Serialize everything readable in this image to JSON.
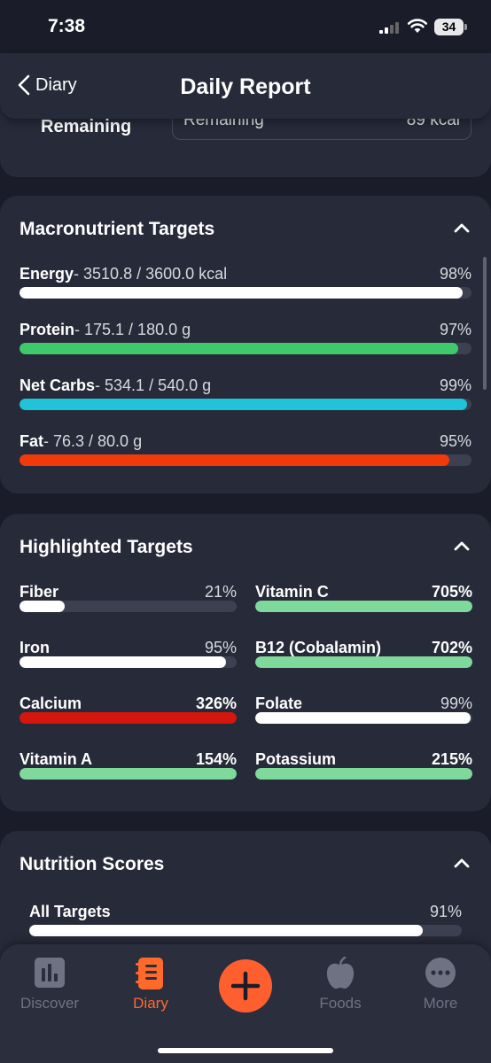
{
  "status_bar": {
    "time": "7:38",
    "battery": "34"
  },
  "header": {
    "back_label": "Diary",
    "title": "Daily Report"
  },
  "remaining_card": {
    "label": "Remaining",
    "box_label": "Remaining",
    "box_value": "89 kcal"
  },
  "macro_card": {
    "title": "Macronutrient Targets",
    "rows": [
      {
        "name": "Energy",
        "detail": "- 3510.8 / 3600.0 kcal",
        "percent_text": "98%",
        "progress": 0.98,
        "color": "#ffffff"
      },
      {
        "name": "Protein",
        "detail": "- 175.1 / 180.0 g",
        "percent_text": "97%",
        "progress": 0.97,
        "color": "#3ec96b"
      },
      {
        "name": "Net Carbs",
        "detail": "- 534.1 / 540.0 g",
        "percent_text": "99%",
        "progress": 0.99,
        "color": "#1fc4d8"
      },
      {
        "name": "Fat",
        "detail": "- 76.3 / 80.0 g",
        "percent_text": "95%",
        "progress": 0.95,
        "color": "#f03a0c"
      }
    ]
  },
  "highlight_card": {
    "title": "Highlighted Targets",
    "items": [
      {
        "name": "Fiber",
        "percent_text": "21%",
        "progress": 0.21,
        "color": "#ffffff",
        "bold": false
      },
      {
        "name": "Vitamin C",
        "percent_text": "705%",
        "progress": 1.0,
        "color": "#7ed99a",
        "bold": true
      },
      {
        "name": "Iron",
        "percent_text": "95%",
        "progress": 0.95,
        "color": "#ffffff",
        "bold": false
      },
      {
        "name": "B12 (Cobalamin)",
        "percent_text": "702%",
        "progress": 1.0,
        "color": "#7ed99a",
        "bold": true
      },
      {
        "name": "Calcium",
        "percent_text": "326%",
        "progress": 1.0,
        "color": "#d4160c",
        "bold": true
      },
      {
        "name": "Folate",
        "percent_text": "99%",
        "progress": 0.99,
        "color": "#ffffff",
        "bold": false
      },
      {
        "name": "Vitamin A",
        "percent_text": "154%",
        "progress": 1.0,
        "color": "#7ed99a",
        "bold": true
      },
      {
        "name": "Potassium",
        "percent_text": "215%",
        "progress": 1.0,
        "color": "#7ed99a",
        "bold": true
      }
    ]
  },
  "scores_card": {
    "title": "Nutrition Scores",
    "rows": [
      {
        "name": "All Targets",
        "percent_text": "91%",
        "progress": 0.91,
        "color": "#ffffff"
      }
    ]
  },
  "tab_bar": {
    "tabs": [
      {
        "label": "Discover",
        "icon": "bar-chart-icon",
        "active": false
      },
      {
        "label": "Diary",
        "icon": "notebook-icon",
        "active": true
      },
      {
        "label": "Foods",
        "icon": "apple-icon",
        "active": false
      },
      {
        "label": "More",
        "icon": "more-dots-icon",
        "active": false
      }
    ],
    "add_icon": "plus-icon"
  },
  "colors": {
    "accent": "#ff5f2e",
    "card": "#272a39",
    "background": "#1a1d29",
    "track": "#3d4050"
  }
}
